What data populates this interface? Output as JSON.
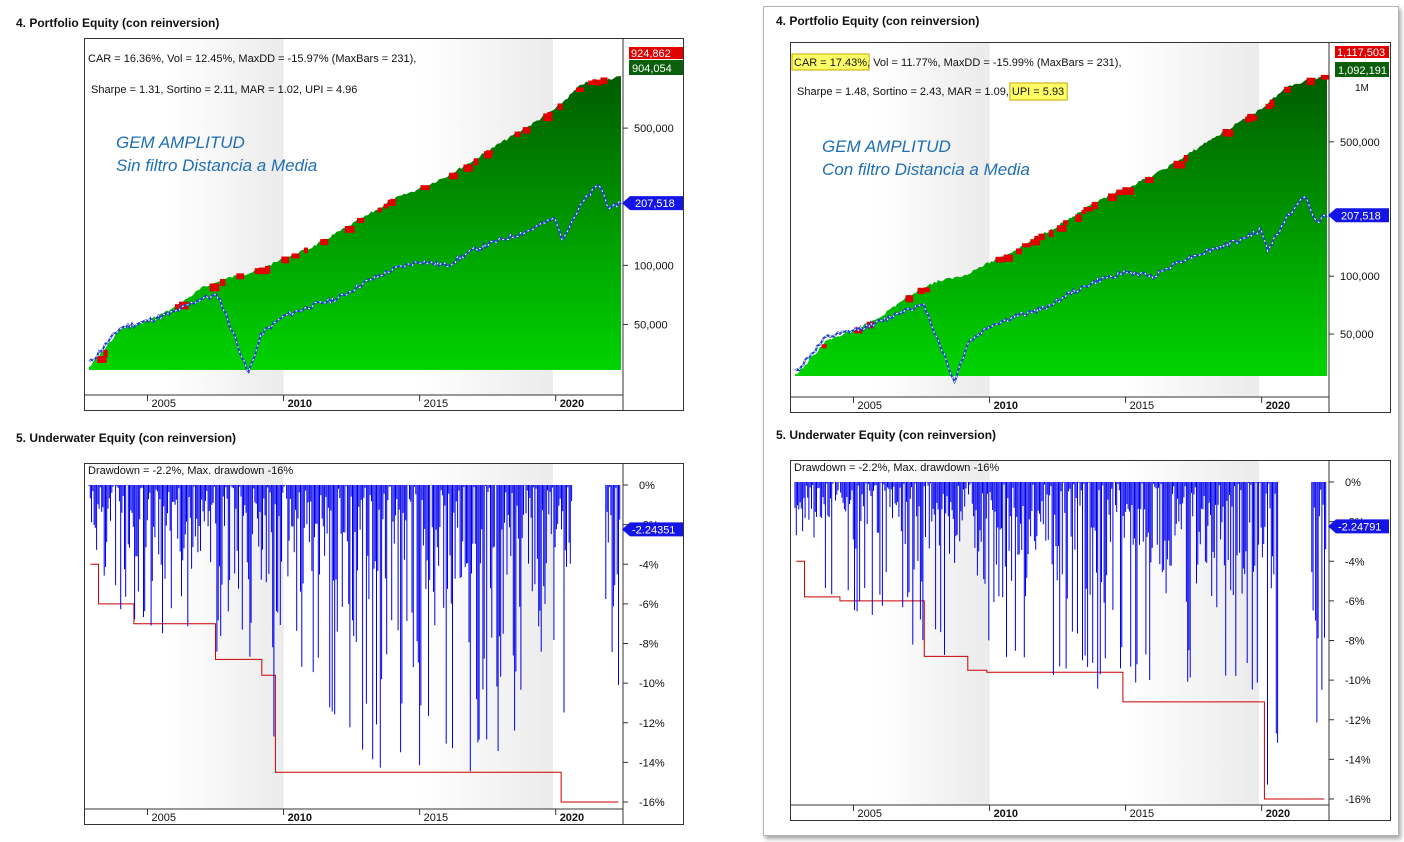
{
  "panels": [
    {
      "equity_heading": "4. Portfolio Equity (con reinversion)",
      "underwater_heading": "5. Underwater Equity (con reinversion)",
      "stats_line1": "CAR = 16.36%, Vol = 12.45%, MaxDD = -15.97% (MaxBars = 231),",
      "stats_line2": "Sharpe = 1.31, Sortino = 2.11, MAR = 1.02, UPI = 4.96",
      "stats_line1_parts": [],
      "stats_line2_parts": [],
      "overlay_title1": "GEM AMPLITUD",
      "overlay_title2": "Sin filtro Distancia a Media",
      "drawdown_caption": "Drawdown = -2.2%, Max. drawdown -16%",
      "top_tag_red": "924,862",
      "top_tag_green": "904,054",
      "top_tag_extra": "",
      "benchmark_tag": "207,518",
      "underwater_tag": "-2.24351"
    },
    {
      "equity_heading": "4. Portfolio Equity (con reinversion)",
      "underwater_heading": "5. Underwater Equity (con reinversion)",
      "stats_line1": "",
      "stats_line2": "",
      "stats_line1_parts": [
        {
          "text": "CAR = 17.43%",
          "highlight": true
        },
        {
          "text": ", Vol = 11.77%, MaxDD = -15.99% (MaxBars = 231),",
          "highlight": false
        }
      ],
      "stats_line2_parts": [
        {
          "text": "Sharpe = 1.48, Sortino = 2.43, MAR = 1.09,",
          "highlight": false
        },
        {
          "text": "UPI = 5.93",
          "highlight": true
        }
      ],
      "overlay_title1": "GEM AMPLITUD",
      "overlay_title2": "Con filtro Distancia a Media",
      "drawdown_caption": "Drawdown = -2.2%, Max. drawdown -16%",
      "top_tag_red": "1,117,503",
      "top_tag_green": "1,092,191",
      "top_tag_extra": "1M",
      "benchmark_tag": "207,518",
      "underwater_tag": "-2.24791"
    }
  ],
  "colors": {
    "equity_fill_top": "#005c00",
    "equity_fill_bottom": "#00d400",
    "drawdown_red": "#e00000",
    "benchmark_line": "#1f3fd0",
    "underwater_blue": "#0000ee",
    "max_dd_line": "#cc0000",
    "highlight": "#ffff66",
    "overlay_text": "#1f6fb5",
    "band_gray": "#ebebeb"
  },
  "chart_data": [
    {
      "type": "area",
      "title": "4. Portfolio Equity (con reinversion)",
      "y_scale": "log",
      "x_ticks": [
        "2005",
        "2010",
        "2015",
        "2020"
      ],
      "y_ticks": [
        50000,
        100000,
        500000
      ],
      "series": [
        {
          "name": "",
          "x": [
            2002.9,
            2004,
            2005,
            2006,
            2007,
            2008,
            2009,
            2010,
            2011,
            2012,
            2013,
            2014,
            2015,
            2016,
            2017,
            2018,
            2019,
            2020,
            2021,
            2022.3
          ],
          "values": [
            31000,
            48000,
            53000,
            62000,
            78000,
            88000,
            95000,
            110000,
            125000,
            150000,
            180000,
            220000,
            250000,
            290000,
            350000,
            430000,
            520000,
            640000,
            860000,
            924862
          ]
        },
        {
          "name": "",
          "x": [
            2002.9,
            2003.5,
            2004,
            2005,
            2006,
            2007,
            2007.6,
            2008.3,
            2008.7,
            2009.2,
            2010,
            2011,
            2012,
            2013,
            2014,
            2015,
            2016,
            2017,
            2018,
            2019,
            2020,
            2020.2,
            2021,
            2021.6,
            2022,
            2022.3
          ],
          "values": [
            32000,
            40000,
            48000,
            52000,
            58000,
            68000,
            70000,
            40000,
            28000,
            45000,
            55000,
            62000,
            68000,
            82000,
            95000,
            105000,
            100000,
            120000,
            135000,
            150000,
            175000,
            135000,
            210000,
            260000,
            190000,
            207518
          ]
        }
      ]
    },
    {
      "type": "area",
      "title": "5. Underwater Equity (con reinversion)",
      "y_ticks": [
        0,
        -2,
        -4,
        -6,
        -8,
        -10,
        -12,
        -14,
        -16
      ],
      "x_ticks": [
        "2005",
        "2010",
        "2015",
        "2020"
      ],
      "series": [
        {
          "name": "Max. drawdown",
          "x": [
            2002.9,
            2003.2,
            2004.5,
            2007.5,
            2009.2,
            2009.7,
            2019.9,
            2020.2,
            2022.3
          ],
          "values": [
            -4,
            -6,
            -7,
            -8.8,
            -9.6,
            -14.5,
            -14.5,
            -16,
            -16
          ]
        }
      ]
    },
    {
      "type": "area",
      "title": "4. Portfolio Equity (con reinversion)",
      "y_scale": "log",
      "x_ticks": [
        "2005",
        "2010",
        "2015",
        "2020"
      ],
      "y_ticks": [
        50000,
        100000,
        500000
      ],
      "series": [
        {
          "name": "",
          "x": [
            2002.9,
            2004,
            2005,
            2006,
            2007,
            2008,
            2009,
            2010,
            2011,
            2012,
            2013,
            2014,
            2015,
            2016,
            2017,
            2018,
            2019,
            2020,
            2021,
            2022.3
          ],
          "values": [
            31000,
            47000,
            53000,
            63000,
            80000,
            95000,
            102000,
            120000,
            140000,
            170000,
            205000,
            250000,
            290000,
            340000,
            410000,
            510000,
            620000,
            760000,
            1000000,
            1117503
          ]
        },
        {
          "name": "",
          "x": [
            2002.9,
            2003.5,
            2004,
            2005,
            2006,
            2007,
            2007.6,
            2008.3,
            2008.7,
            2009.2,
            2010,
            2011,
            2012,
            2013,
            2014,
            2015,
            2016,
            2017,
            2018,
            2019,
            2020,
            2020.2,
            2021,
            2021.6,
            2022,
            2022.3
          ],
          "values": [
            32000,
            40000,
            48000,
            52000,
            58000,
            68000,
            70000,
            40000,
            28000,
            45000,
            55000,
            62000,
            68000,
            82000,
            95000,
            105000,
            100000,
            120000,
            135000,
            150000,
            175000,
            135000,
            210000,
            260000,
            190000,
            207518
          ]
        }
      ]
    },
    {
      "type": "area",
      "title": "5. Underwater Equity (con reinversion)",
      "y_ticks": [
        0,
        -2,
        -4,
        -6,
        -8,
        -10,
        -12,
        -14,
        -16
      ],
      "x_ticks": [
        "2005",
        "2010",
        "2015",
        "2020"
      ],
      "series": [
        {
          "name": "Max. drawdown",
          "x": [
            2002.9,
            2003.2,
            2004.5,
            2007.6,
            2009.2,
            2009.9,
            2014.9,
            2020.0,
            2020.1,
            2022.3
          ],
          "values": [
            -4,
            -5.8,
            -6,
            -8.8,
            -9.5,
            -9.6,
            -11.1,
            -11.1,
            -16,
            -16
          ]
        }
      ]
    }
  ]
}
